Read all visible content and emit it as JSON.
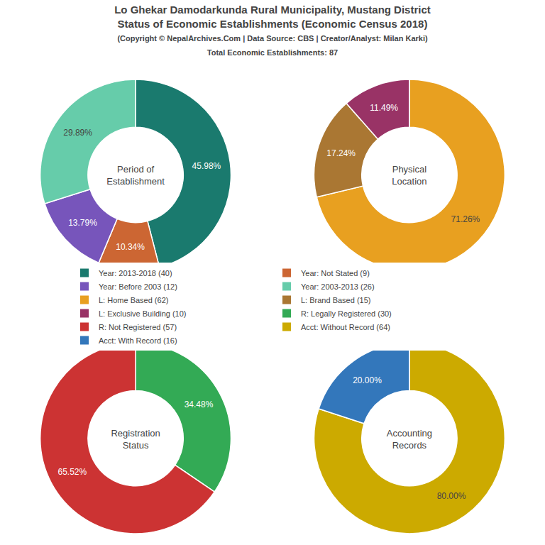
{
  "title": [
    "Lo Ghekar Damodarkunda Rural Municipality, Mustang District",
    "Status of Economic Establishments (Economic Census 2018)"
  ],
  "subtitle": [
    "(Copyright © NepalArchives.Com | Data Source: CBS | Creator/Analyst: Milan Karki)",
    "Total Economic Establishments: 87"
  ],
  "legend": "center",
  "chart_data": [
    {
      "type": "pie",
      "title": "Period of\nEstablishment",
      "categories": [
        "Year: 2013-2018 (40)",
        "Year: Not Stated (9)",
        "Year: Before 2003 (12)",
        "Year: 2003-2013 (26)"
      ],
      "values": [
        45.98,
        10.34,
        13.79,
        29.89
      ],
      "value_labels": [
        "45.98%",
        "10.34%",
        "13.79%",
        "29.89%"
      ],
      "colors": [
        "#1a7a6e",
        "#cc6633",
        "#7755bb",
        "#66ccaa"
      ],
      "data_labels": true
    },
    {
      "type": "pie",
      "title": "Physical\nLocation",
      "categories": [
        "L: Home Based (62)",
        "L: Brand Based (15)",
        "L: Exclusive Building (10)",
        null
      ],
      "values": [
        71.26,
        17.24,
        11.49,
        0.01
      ],
      "value_labels": [
        "71.26%",
        "17.24%",
        "11.49%",
        null
      ],
      "colors": [
        "#e8a020",
        "#aa7733",
        "#993366",
        "#ffffff"
      ],
      "data_labels": true
    },
    {
      "type": "pie",
      "title": "Registration\nStatus",
      "categories": [
        "R: Legally Registered (30)",
        "R: Not Registered (57)"
      ],
      "values": [
        34.48,
        65.52
      ],
      "value_labels": [
        "34.48%",
        "65.52%"
      ],
      "colors": [
        "#33aa55",
        "#cc3333"
      ],
      "data_labels": true
    },
    {
      "type": "pie",
      "title": "Accounting\nRecords",
      "categories": [
        "Acct: Without Record (64)",
        "Acct: With Record (16)"
      ],
      "values": [
        80.0,
        20.0
      ],
      "value_labels": [
        "80.00%",
        "20.00%"
      ],
      "colors": [
        "#ccaa00",
        "#3377bb"
      ],
      "data_labels": true
    }
  ]
}
